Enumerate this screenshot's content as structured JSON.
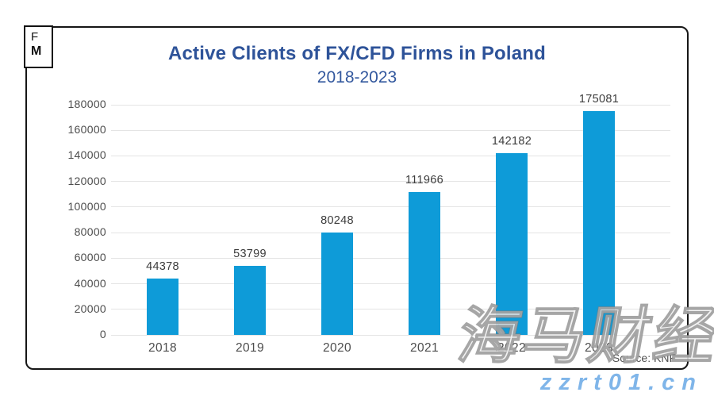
{
  "logo": {
    "line1": "F",
    "line2": "M"
  },
  "header": {
    "title": "Active Clients of FX/CFD Firms in Poland",
    "subtitle": "2018-2023"
  },
  "source": "Source: KNF",
  "watermark": {
    "cjk_text": "海马财经",
    "url_text": "zzrt01.cn"
  },
  "colors": {
    "bar": "#0e9bd8",
    "title": "#2e5399",
    "gridline": "#e4e4e4",
    "axis_text": "#4d4d4d",
    "border": "#161616",
    "url_watermark": "#7fb5e9"
  },
  "chart_data": {
    "type": "bar",
    "title": "Active Clients of FX/CFD Firms in Poland",
    "subtitle": "2018-2023",
    "categories": [
      "2018",
      "2019",
      "2020",
      "2021",
      "2022",
      "2023"
    ],
    "values": [
      44378,
      53799,
      80248,
      111966,
      142182,
      175081
    ],
    "data_labels": [
      44378,
      53799,
      80248,
      111966,
      142182,
      175081
    ],
    "xlabel": "",
    "ylabel": "",
    "ylim": [
      0,
      180000
    ],
    "ytick_step": 20000,
    "ytick_labels": [
      "0",
      "20000",
      "40000",
      "60000",
      "80000",
      "100000",
      "120000",
      "140000",
      "160000",
      "180000"
    ],
    "grid": true,
    "legend": false,
    "bar_color": "#0e9bd8"
  }
}
